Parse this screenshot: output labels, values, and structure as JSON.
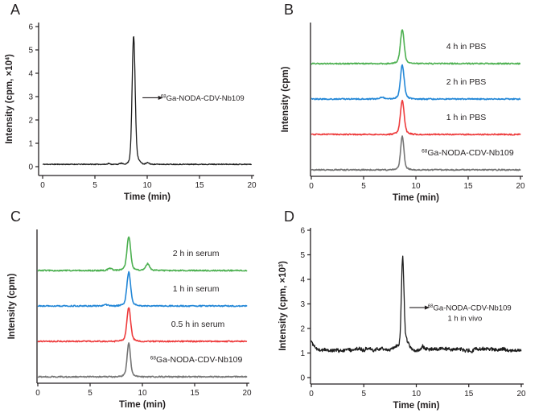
{
  "figure": {
    "panels": [
      {
        "id": "A",
        "label": "A"
      },
      {
        "id": "B",
        "label": "B"
      },
      {
        "id": "C",
        "label": "C"
      },
      {
        "id": "D",
        "label": "D"
      }
    ]
  },
  "colors": {
    "axis": "#231f20",
    "black_trace": "#1c1c1c",
    "gray_trace": "#757575",
    "red_trace": "#ee3b3c",
    "blue_trace": "#2387d7",
    "green_trace": "#4cb050"
  },
  "chart_data": [
    {
      "panel": "A",
      "type": "line",
      "mode": "xy",
      "title": "",
      "xlabel": "Time (min)",
      "ylabel": {
        "prefix": "Intensity (cpm, ×10",
        "sup": "4",
        "suffix": ")"
      },
      "xlim": [
        0,
        20
      ],
      "ylim": [
        0,
        6
      ],
      "xticks": [
        0,
        5,
        10,
        15,
        20
      ],
      "yticks": [
        0,
        1,
        2,
        3,
        4,
        5,
        6
      ],
      "retention_time_min": 8.7,
      "series": [
        {
          "name": {
            "sup": "68",
            "text": "Ga-NODA-CDV-Nb109"
          },
          "color": "#1c1c1c",
          "baseline": 0.1,
          "noise": 0.018,
          "peaks": [
            {
              "center": 8.7,
              "height": 5.05,
              "sigma": 0.14
            },
            {
              "center": 8.78,
              "height": 0.45,
              "sigma": 0.34
            },
            {
              "center": 6.3,
              "height": 0.04,
              "sigma": 0.1
            },
            {
              "center": 7.5,
              "height": 0.05,
              "sigma": 0.12
            },
            {
              "center": 10.05,
              "height": 0.07,
              "sigma": 0.15
            }
          ],
          "seed": 11
        }
      ],
      "annotation": {
        "sup": "68",
        "text": "Ga-NODA-CDV-Nb109",
        "line2": "",
        "value_y": 2.95,
        "arrow_from": 9.55,
        "arrow_to": 11.05,
        "text_x": 11.3
      }
    },
    {
      "panel": "B",
      "type": "line",
      "mode": "stacked",
      "title": "",
      "xlabel": "Time (min)",
      "ylabel": {
        "prefix": "Intensity (cpm)",
        "sup": "",
        "suffix": ""
      },
      "xlim": [
        0,
        20
      ],
      "xticks": [
        0,
        5,
        10,
        15,
        20
      ],
      "retention_time_min": 8.7,
      "series": [
        {
          "label": {
            "sup": "68",
            "text": "Ga-NODA-CDV-Nb109"
          },
          "color": "#757575",
          "row": 0,
          "label_x": 10.55,
          "peaks": [
            {
              "center": 8.7,
              "h": 1.0,
              "sigma": 0.15
            }
          ],
          "seed": 21
        },
        {
          "label": {
            "sup": "",
            "text": "1 h in PBS"
          },
          "color": "#ee3b3c",
          "row": 1,
          "label_x": 12.9,
          "peaks": [
            {
              "center": 8.7,
              "h": 1.0,
              "sigma": 0.17
            }
          ],
          "seed": 22
        },
        {
          "label": {
            "sup": "",
            "text": "2 h in PBS"
          },
          "color": "#2387d7",
          "row": 2,
          "label_x": 12.9,
          "peaks": [
            {
              "center": 8.7,
              "h": 1.0,
              "sigma": 0.17
            },
            {
              "center": 6.8,
              "h": 0.05,
              "sigma": 0.2
            }
          ],
          "seed": 23
        },
        {
          "label": {
            "sup": "",
            "text": "4 h in PBS"
          },
          "color": "#4cb050",
          "row": 3,
          "label_x": 12.9,
          "peaks": [
            {
              "center": 8.7,
              "h": 1.0,
              "sigma": 0.17
            }
          ],
          "seed": 24
        }
      ]
    },
    {
      "panel": "C",
      "type": "line",
      "mode": "stacked",
      "title": "",
      "xlabel": "Time (min)",
      "ylabel": {
        "prefix": "Intensity (cpm)",
        "sup": "",
        "suffix": ""
      },
      "xlim": [
        0,
        20
      ],
      "xticks": [
        0,
        5,
        10,
        15,
        20
      ],
      "retention_time_min": 8.7,
      "series": [
        {
          "label": {
            "sup": "68",
            "text": "Ga-NODA-CDV-Nb109"
          },
          "color": "#757575",
          "row": 0,
          "label_x": 10.75,
          "peaks": [
            {
              "center": 8.7,
              "h": 1.0,
              "sigma": 0.15
            }
          ],
          "seed": 31
        },
        {
          "label": {
            "sup": "",
            "text": "0.5 h in serum"
          },
          "color": "#ee3b3c",
          "row": 1,
          "label_x": 12.75,
          "peaks": [
            {
              "center": 8.7,
              "h": 1.0,
              "sigma": 0.17
            }
          ],
          "seed": 32
        },
        {
          "label": {
            "sup": "",
            "text": "1 h in serum"
          },
          "color": "#2387d7",
          "row": 2,
          "label_x": 12.9,
          "peaks": [
            {
              "center": 8.7,
              "h": 1.0,
              "sigma": 0.17
            },
            {
              "center": 6.5,
              "h": 0.04,
              "sigma": 0.2
            }
          ],
          "seed": 33
        },
        {
          "label": {
            "sup": "",
            "text": "2 h in serum"
          },
          "color": "#4cb050",
          "row": 3,
          "label_x": 12.9,
          "peaks": [
            {
              "center": 8.7,
              "h": 1.0,
              "sigma": 0.17
            },
            {
              "center": 10.5,
              "h": 0.2,
              "sigma": 0.17
            },
            {
              "center": 6.9,
              "h": 0.06,
              "sigma": 0.2
            }
          ],
          "seed": 34
        }
      ]
    },
    {
      "panel": "D",
      "type": "line",
      "mode": "xy",
      "title": "",
      "xlabel": "Time (min)",
      "ylabel": {
        "prefix": "Intensity (cpm, ×10",
        "sup": "3",
        "suffix": ")"
      },
      "xlim": [
        0,
        20
      ],
      "ylim": [
        0,
        6
      ],
      "xticks": [
        0,
        5,
        10,
        15,
        20
      ],
      "yticks": [
        0,
        1,
        2,
        3,
        4,
        5,
        6
      ],
      "retention_time_min": 8.7,
      "series": [
        {
          "name": {
            "sup": "68",
            "text": "Ga-NODA-CDV-Nb109"
          },
          "color": "#1c1c1c",
          "baseline": 1.13,
          "noise": 0.065,
          "wander": 0.05,
          "transient": {
            "height": 0.33,
            "tau": 0.35
          },
          "peaks": [
            {
              "center": 8.7,
              "height": 3.5,
              "sigma": 0.12
            },
            {
              "center": 9.0,
              "height": 0.42,
              "sigma": 0.3
            },
            {
              "center": 8.2,
              "height": 0.15,
              "sigma": 0.3
            },
            {
              "center": 10.6,
              "height": 0.1,
              "sigma": 0.2
            }
          ],
          "seed": 41
        }
      ],
      "annotation": {
        "sup": "68",
        "text": "Ga-NODA-CDV-Nb109",
        "line2": "1 h in vivo",
        "value_y": 2.85,
        "arrow_from": 9.35,
        "arrow_to": 10.8,
        "text_x": 11.1
      }
    }
  ]
}
